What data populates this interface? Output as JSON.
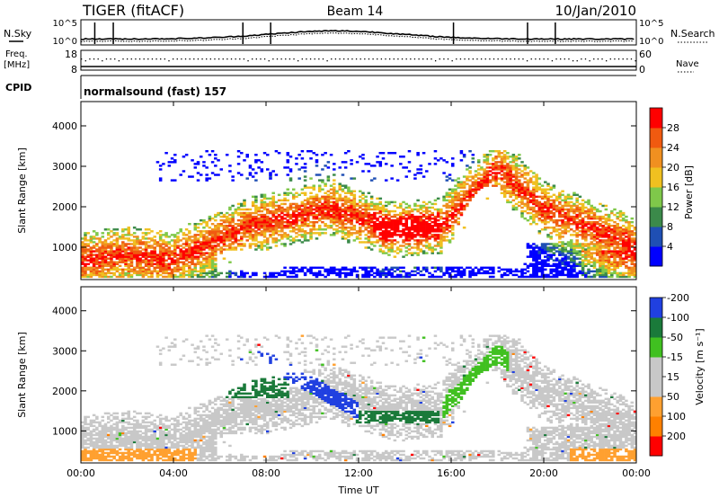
{
  "header": {
    "radar": "TIGER (fitACF)",
    "beam": "Beam 14",
    "date": "10/Jan/2010"
  },
  "noise_panel": {
    "left_label": "N.Sky",
    "right_label": "N.Search",
    "left_ticks": [
      "10^5",
      "10^0"
    ],
    "right_ticks": [
      "10^5",
      "10^0"
    ]
  },
  "freq_panel": {
    "left_label_line1": "Freq.",
    "left_label_line2": "[MHz]",
    "right_label": "Nave",
    "left_ticks": [
      "18",
      "8"
    ],
    "right_ticks": [
      "60",
      "0"
    ]
  },
  "cpid_panel": {
    "label": "CPID",
    "program": "normalsound (fast) 157"
  },
  "colors": {
    "power": [
      "#0000ff",
      "#1f4fb4",
      "#3b8a4a",
      "#7fc84a",
      "#f0c020",
      "#f09020",
      "#f05a10",
      "#ff0000"
    ],
    "velocity": [
      "#ff0000",
      "#ff8000",
      "#ffa030",
      "#c8c8c8",
      "#c8c8c8",
      "#40c020",
      "#1a7a3a",
      "#2040e0"
    ],
    "ground_scatter": "#c8c8c8"
  },
  "chart_data": [
    {
      "type": "heatmap",
      "name": "power",
      "ylabel": "Slant Range [km]",
      "yticks": [
        1000,
        2000,
        3000,
        4000
      ],
      "ylim": [
        200,
        4600
      ],
      "xlim": [
        0,
        24
      ],
      "xticks": [
        0,
        4,
        8,
        12,
        16,
        20,
        24
      ],
      "colorbar": {
        "label": "Power [dB]",
        "ticks": [
          "4",
          "8",
          "12",
          "16",
          "20",
          "24",
          "28"
        ],
        "range": [
          0,
          32
        ]
      }
    },
    {
      "type": "heatmap",
      "name": "velocity",
      "ylabel": "Slant Range [km]",
      "yticks": [
        1000,
        2000,
        3000,
        4000
      ],
      "ylim": [
        200,
        4600
      ],
      "xlim": [
        0,
        24
      ],
      "xticks": [
        0,
        4,
        8,
        12,
        16,
        20,
        24
      ],
      "xticklabels": [
        "00:00",
        "04:00",
        "08:00",
        "12:00",
        "16:00",
        "20:00",
        "00:00"
      ],
      "xlabel": "Time UT",
      "colorbar": {
        "label": "Velocity [m s⁻¹]",
        "ticks": [
          "200",
          "100",
          "50",
          "15",
          "-15",
          "-50",
          "-100",
          "-200"
        ],
        "range": [
          -250,
          250
        ]
      }
    }
  ]
}
